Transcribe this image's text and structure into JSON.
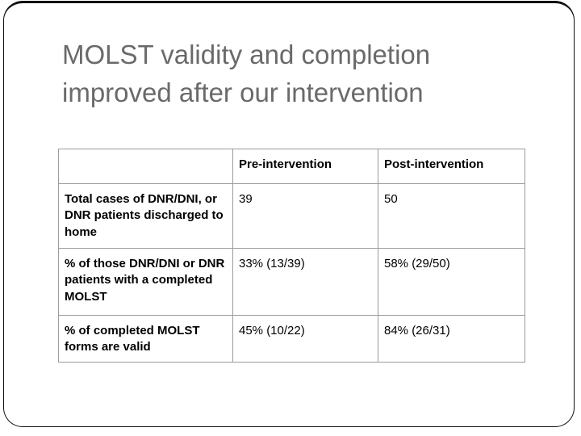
{
  "slide": {
    "title": "MOLST validity and completion improved after our intervention",
    "title_color": "#6a6a6a",
    "frame_border_color": "#111111",
    "background_color": "#ffffff"
  },
  "table": {
    "border_color": "#9b9b9b",
    "columns": [
      "",
      "Pre-intervention",
      "Post-intervention"
    ],
    "rows": [
      {
        "label": "Total cases of DNR/DNI, or DNR patients discharged to home",
        "pre": "39",
        "post": "50"
      },
      {
        "label": "% of those DNR/DNI or DNR patients with a completed MOLST",
        "pre": "33% (13/39)",
        "post": "58% (29/50)"
      },
      {
        "label": "% of completed MOLST forms are valid",
        "pre": "45% (10/22)",
        "post": "84% (26/31)"
      }
    ]
  }
}
